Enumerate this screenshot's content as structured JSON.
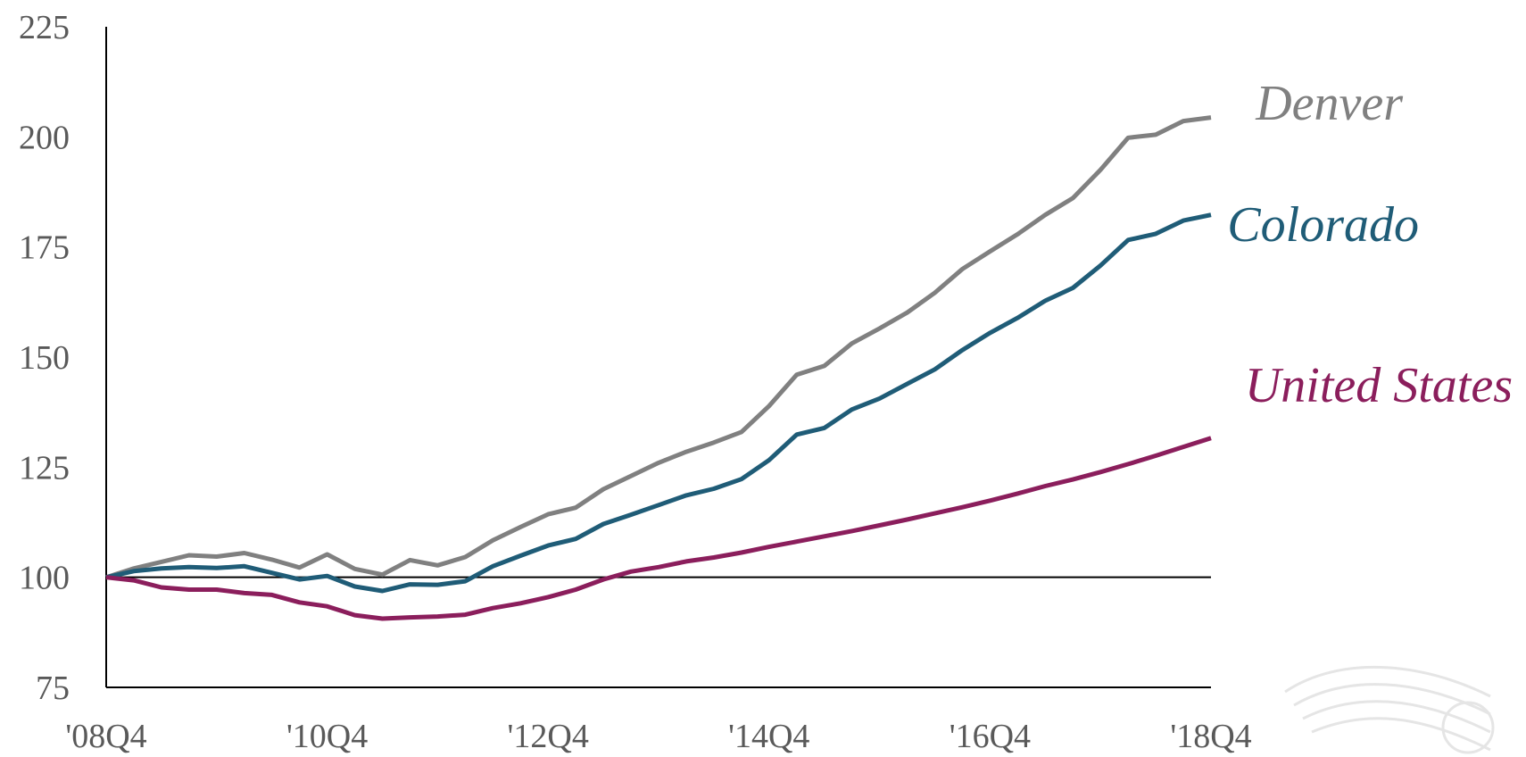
{
  "chart_data": {
    "type": "line",
    "title": "",
    "xlabel": "",
    "ylabel": "",
    "ylim": [
      75,
      225
    ],
    "yticks": [
      "75",
      "100",
      "125",
      "150",
      "175",
      "200",
      "225"
    ],
    "reference_line": 100,
    "xtick_labels": [
      "'08Q4",
      "'10Q4",
      "'12Q4",
      "'14Q4",
      "'16Q4",
      "'18Q4"
    ],
    "x": [
      "2008Q4",
      "2009Q1",
      "2009Q2",
      "2009Q3",
      "2009Q4",
      "2010Q1",
      "2010Q2",
      "2010Q3",
      "2010Q4",
      "2011Q1",
      "2011Q2",
      "2011Q3",
      "2011Q4",
      "2012Q1",
      "2012Q2",
      "2012Q3",
      "2012Q4",
      "2013Q1",
      "2013Q2",
      "2013Q3",
      "2013Q4",
      "2014Q1",
      "2014Q2",
      "2014Q3",
      "2014Q4",
      "2015Q1",
      "2015Q2",
      "2015Q3",
      "2015Q4",
      "2016Q1",
      "2016Q2",
      "2016Q3",
      "2016Q4",
      "2017Q1",
      "2017Q2",
      "2017Q3",
      "2017Q4",
      "2018Q1",
      "2018Q2",
      "2018Q3",
      "2018Q4"
    ],
    "grid": false,
    "series": [
      {
        "name": "Denver",
        "color": "#808080",
        "values": [
          100,
          102,
          103.5,
          105,
          104.7,
          105.5,
          104,
          102.2,
          105.2,
          101.9,
          100.6,
          103.9,
          102.7,
          104.6,
          108.4,
          111.4,
          114.3,
          115.8,
          120,
          123,
          126,
          128.5,
          130.6,
          133,
          138.9,
          146,
          148,
          153.1,
          156.5,
          160.1,
          164.6,
          170,
          174,
          177.9,
          182.3,
          186.1,
          192.5,
          199.8,
          200.5,
          203.6,
          204.4
        ]
      },
      {
        "name": "Colorado",
        "color": "#1f5c77",
        "values": [
          100,
          101.4,
          102,
          102.3,
          102.1,
          102.5,
          101,
          99.5,
          100.3,
          97.9,
          96.9,
          98.4,
          98.3,
          99.1,
          102.5,
          104.9,
          107.2,
          108.7,
          112.1,
          114.2,
          116.4,
          118.6,
          120.1,
          122.3,
          126.6,
          132.4,
          133.9,
          138.1,
          140.6,
          143.9,
          147.2,
          151.6,
          155.5,
          158.9,
          162.8,
          165.7,
          170.8,
          176.6,
          178,
          181,
          182.3
        ]
      },
      {
        "name": "United States",
        "color": "#8b1e5c",
        "values": [
          100,
          99.3,
          97.7,
          97.2,
          97.2,
          96.4,
          96,
          94.3,
          93.4,
          91.4,
          90.6,
          90.9,
          91.1,
          91.5,
          93,
          94.1,
          95.5,
          97.2,
          99.5,
          101.3,
          102.3,
          103.6,
          104.5,
          105.6,
          106.9,
          108.1,
          109.3,
          110.5,
          111.8,
          113.1,
          114.5,
          115.9,
          117.4,
          119,
          120.7,
          122.2,
          123.9,
          125.7,
          127.6,
          129.6,
          131.6
        ]
      }
    ]
  }
}
